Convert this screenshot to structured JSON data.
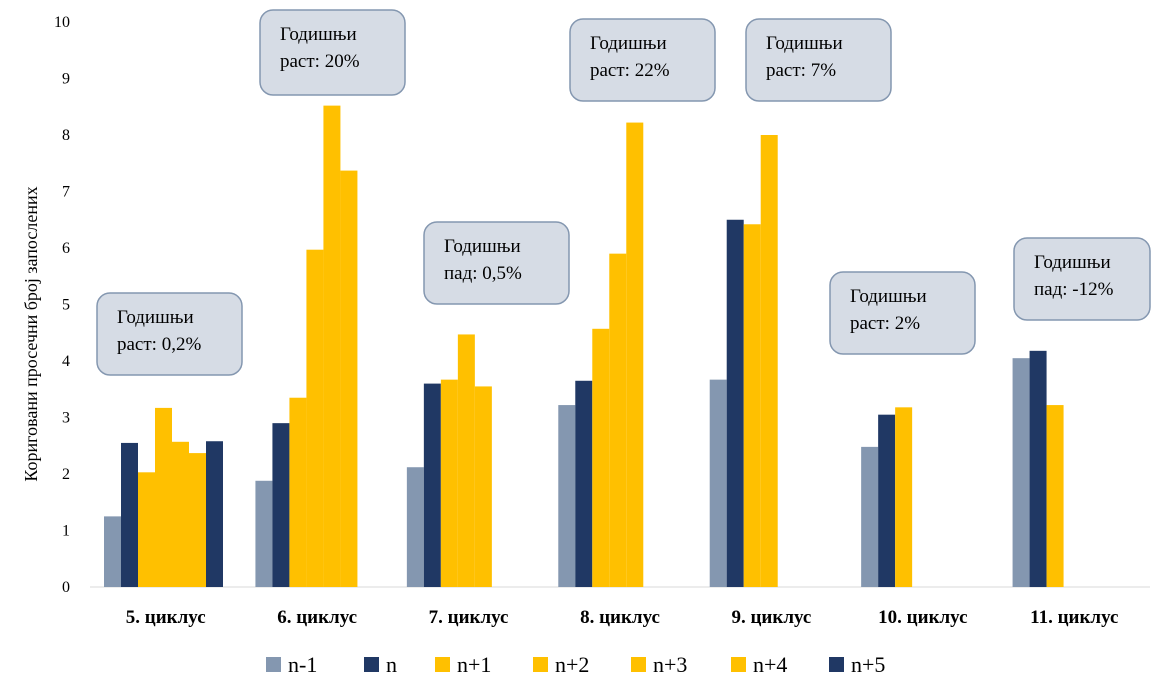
{
  "chart_data": {
    "type": "bar",
    "ylabel": "Кориговани просечни број запослених",
    "ylim": [
      0,
      10
    ],
    "yticks": [
      "0",
      "1",
      "2",
      "3",
      "4",
      "5",
      "6",
      "7",
      "8",
      "9",
      "10"
    ],
    "categories": [
      "5. циклус",
      "6. циклус",
      "7. циклус",
      "8. циклус",
      "9. циклус",
      "10. циклус",
      "11. циклус"
    ],
    "series": [
      {
        "name": "n-1",
        "color": "#8497b0",
        "values": [
          1.25,
          1.88,
          2.12,
          3.22,
          3.67,
          2.48,
          4.05
        ]
      },
      {
        "name": "n",
        "color": "#203864",
        "values": [
          2.55,
          2.9,
          3.6,
          3.65,
          6.5,
          3.05,
          4.18
        ]
      },
      {
        "name": "n+1",
        "color": "#ffc000",
        "values": [
          2.03,
          3.35,
          3.67,
          4.57,
          6.42,
          3.18,
          3.22
        ]
      },
      {
        "name": "n+2",
        "color": "#ffc000",
        "values": [
          3.17,
          5.97,
          4.47,
          5.9,
          8.0,
          null,
          null
        ]
      },
      {
        "name": "n+3",
        "color": "#ffc000",
        "values": [
          2.57,
          8.52,
          3.55,
          8.22,
          null,
          null,
          null
        ]
      },
      {
        "name": "n+4",
        "color": "#ffc000",
        "values": [
          2.37,
          7.37,
          null,
          null,
          null,
          null,
          null
        ]
      },
      {
        "name": "n+5",
        "color": "#203864",
        "values": [
          2.58,
          null,
          null,
          null,
          null,
          null,
          null
        ]
      }
    ],
    "annotations": [
      {
        "category": "5. циклус",
        "lines": [
          "Годишњи",
          "раст: 0,2%"
        ]
      },
      {
        "category": "6. циклус",
        "lines": [
          "Годишњи",
          "раст: 20%"
        ]
      },
      {
        "category": "7. циклус",
        "lines": [
          "Годишњи",
          "пад: 0,5%"
        ]
      },
      {
        "category": "8. циклус",
        "lines": [
          "Годишњи",
          "раст: 22%"
        ]
      },
      {
        "category": "9. циклус",
        "lines": [
          "Годишњи",
          "раст: 7%"
        ]
      },
      {
        "category": "10. циклус",
        "lines": [
          "Годишњи",
          "раст: 2%"
        ]
      },
      {
        "category": "11. циклус",
        "lines": [
          "Годишњи",
          "пад: -12%"
        ]
      }
    ],
    "legend_position": "bottom",
    "grid": false
  }
}
